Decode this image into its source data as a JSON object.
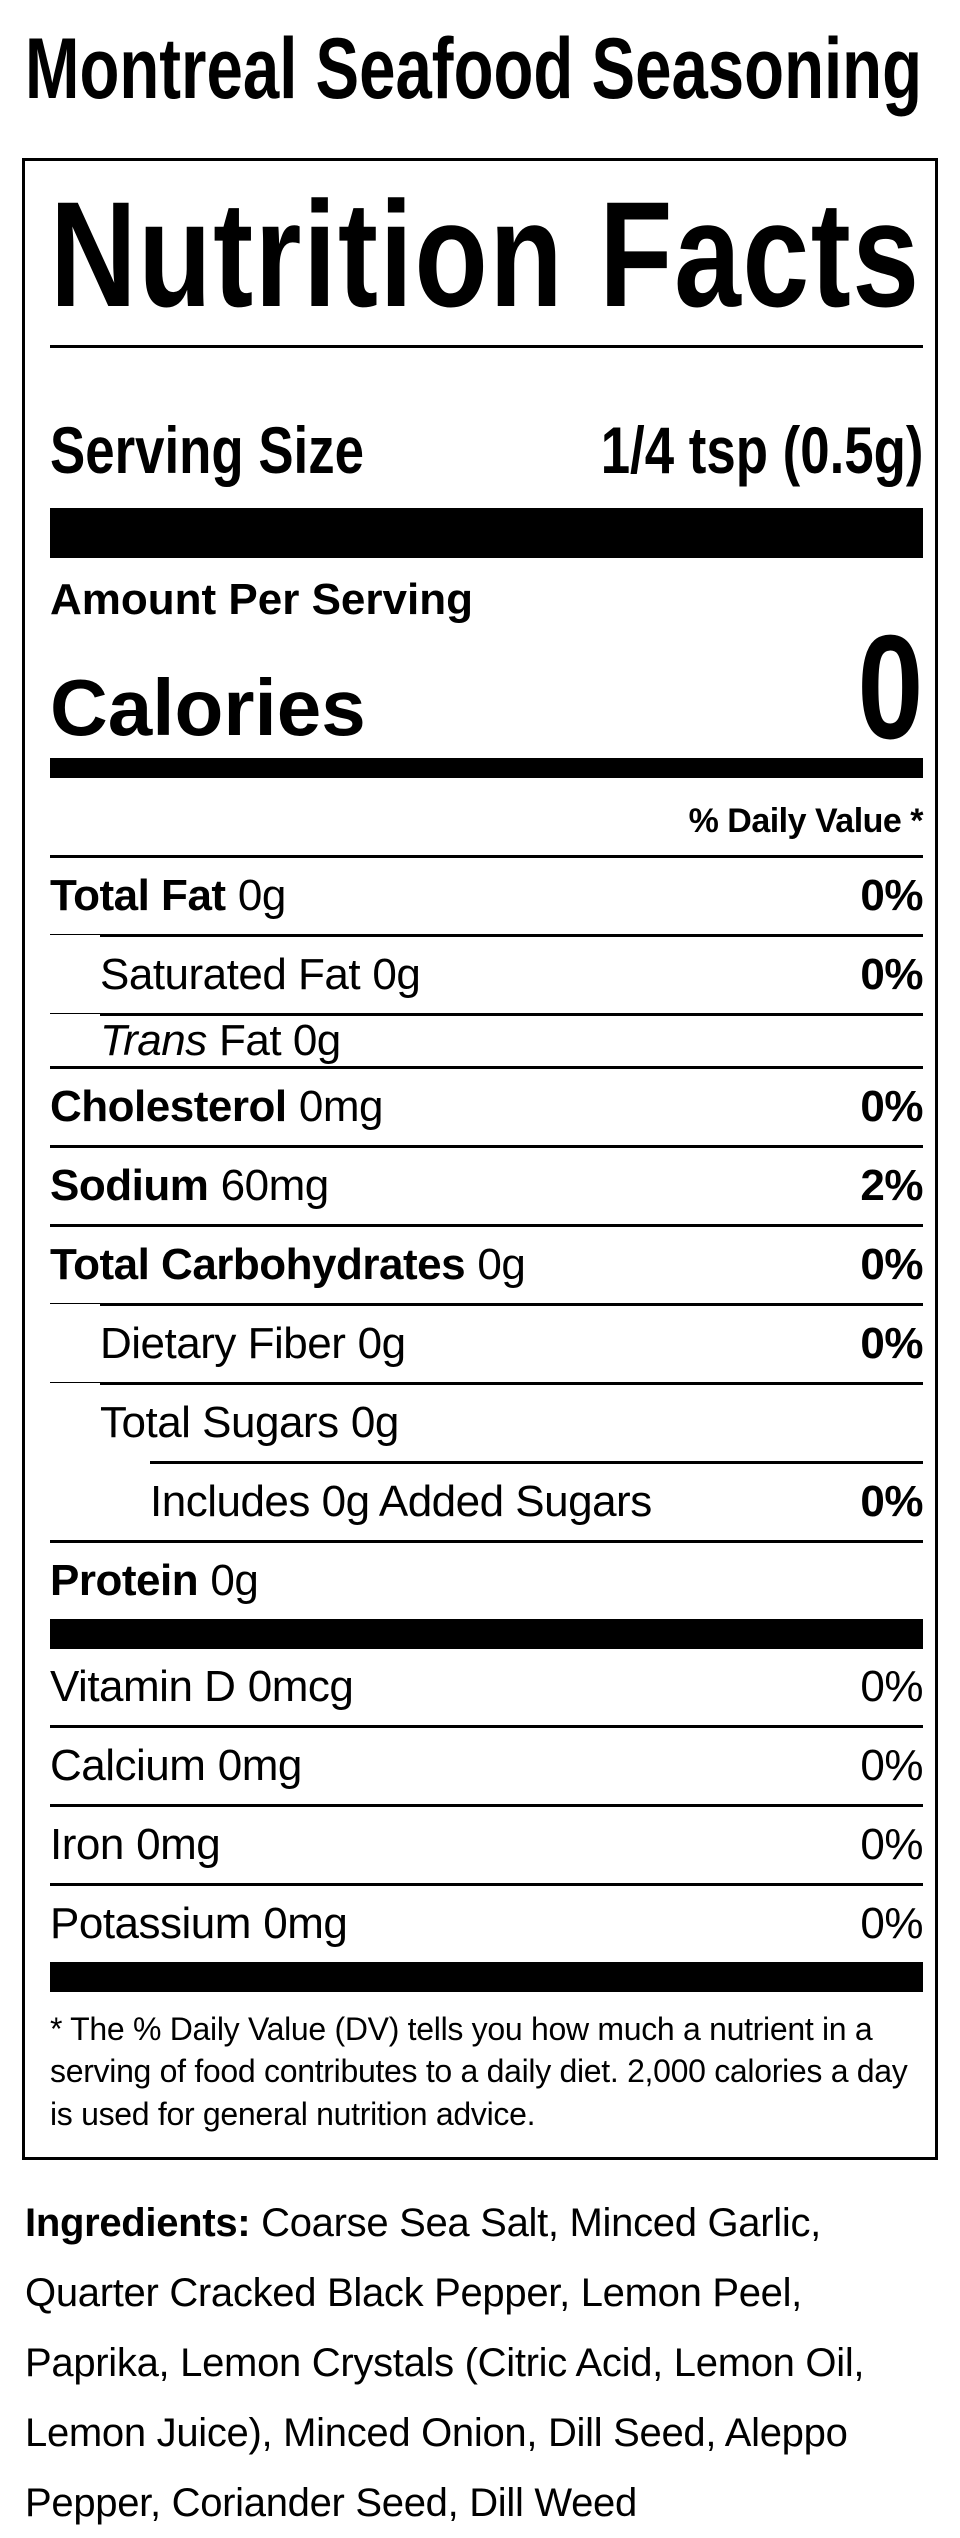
{
  "page_title": "Montreal Seafood Seasoning",
  "colors": {
    "text": "#000000",
    "background": "#ffffff"
  },
  "label": {
    "heading": "Nutrition Facts",
    "serving_size_label": "Serving Size",
    "serving_size_value": "1/4 tsp (0.5g)",
    "amount_per_serving": "Amount Per Serving",
    "calories_label": "Calories",
    "calories_value": "0",
    "daily_value_note": "% Daily Value *",
    "rows": [
      {
        "label": "Total Fat",
        "amount": "0g",
        "dv": "0%"
      },
      {
        "label": "Saturated Fat",
        "amount": "0g",
        "dv": "0%"
      },
      {
        "label": "Trans",
        "amount": "Fat 0g",
        "dv": ""
      },
      {
        "label": "Cholesterol",
        "amount": "0mg",
        "dv": "0%"
      },
      {
        "label": "Sodium",
        "amount": "60mg",
        "dv": "2%"
      },
      {
        "label": "Total Carbohydrates",
        "amount": "0g",
        "dv": "0%"
      },
      {
        "label": "Dietary Fiber",
        "amount": "0g",
        "dv": "0%"
      },
      {
        "label": "Total Sugars",
        "amount": "0g",
        "dv": ""
      },
      {
        "label": "Includes 0g Added Sugars",
        "amount": "",
        "dv": "0%"
      },
      {
        "label": "Protein",
        "amount": "0g",
        "dv": ""
      },
      {
        "label": "Vitamin D",
        "amount": "0mcg",
        "dv": "0%"
      },
      {
        "label": "Calcium",
        "amount": "0mg",
        "dv": "0%"
      },
      {
        "label": "Iron",
        "amount": "0mg",
        "dv": "0%"
      },
      {
        "label": "Potassium",
        "amount": "0mg",
        "dv": "0%"
      }
    ],
    "footnote": "* The % Daily Value (DV) tells you how much a nutrient in a serving of food contributes to a daily diet. 2,000 calories a day is used for general nutrition advice."
  },
  "ingredients": {
    "label": "Ingredients:",
    "text": "Coarse Sea Salt, Minced Garlic, Quarter Cracked Black Pepper, Lemon Peel, Paprika, Lemon Crystals (Citric Acid, Lemon Oil, Lemon Juice), Minced Onion, Dill Seed, Aleppo Pepper, Coriander Seed, Dill Weed"
  }
}
